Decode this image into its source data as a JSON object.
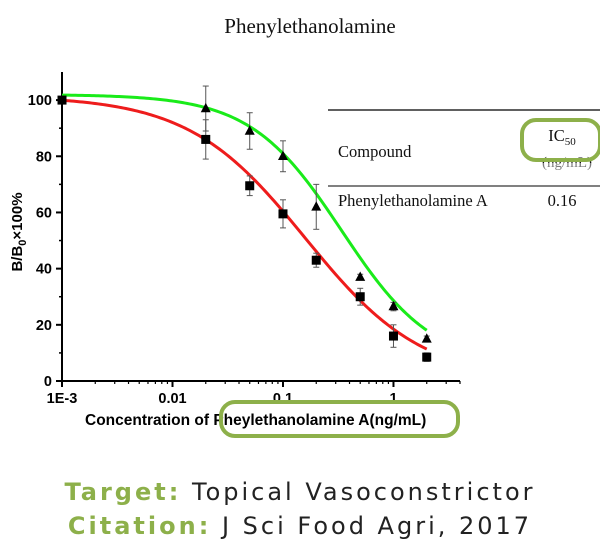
{
  "chart_data": {
    "type": "scatter",
    "title": "Phenylethanolamine",
    "xlabel_parts": [
      "Concentration of ",
      "Pheylethanolamine A(ng/mL)"
    ],
    "ylabel_main": "B/B",
    "ylabel_sub": "0",
    "ylabel_suffix": "×100%",
    "xscale": "log",
    "xlim": [
      0.001,
      4
    ],
    "ylim": [
      0,
      110
    ],
    "x_ticks": [
      {
        "value": 0.001,
        "label": "1E-3"
      },
      {
        "value": 0.01,
        "label": "0.01"
      },
      {
        "value": 0.1,
        "label": "0.1"
      },
      {
        "value": 1,
        "label": "1"
      }
    ],
    "y_ticks": [
      {
        "value": 0,
        "label": "0"
      },
      {
        "value": 20,
        "label": "20"
      },
      {
        "value": 40,
        "label": "40"
      },
      {
        "value": 60,
        "label": "60"
      },
      {
        "value": 80,
        "label": "80"
      },
      {
        "value": 100,
        "label": "100"
      }
    ],
    "series": [
      {
        "marker": "square",
        "color": "#000000",
        "curve_color": "#ee1c1c",
        "x": [
          0.001,
          0.02,
          0.05,
          0.1,
          0.2,
          0.5,
          1,
          2
        ],
        "y": [
          100,
          86,
          69.5,
          59.5,
          43,
          30,
          16,
          8.5
        ],
        "err": [
          0,
          7,
          3.5,
          5,
          2.5,
          3,
          4,
          1.5
        ],
        "fit": {
          "top": 101.5,
          "bottom": 0,
          "ic50": 0.16,
          "hill": 0.82
        }
      },
      {
        "marker": "triangle",
        "color": "#000000",
        "curve_color": "#1aeb1a",
        "x": [
          0.02,
          0.05,
          0.1,
          0.2,
          0.5,
          1,
          2
        ],
        "y": [
          97,
          89,
          80,
          62,
          37,
          26.5,
          15
        ],
        "err": [
          8,
          6.5,
          5.5,
          8,
          1,
          1.5,
          1
        ],
        "fit": {
          "top": 102,
          "bottom": 5,
          "ic50": 0.34,
          "hill": 1.05
        }
      }
    ],
    "grid": false,
    "legend": "none"
  },
  "table": {
    "col1_header": "Compound",
    "col2_header_main": "IC",
    "col2_header_sub": "50",
    "col2_header_unit": "(ng/mL)",
    "row_compound": "Phenylethanolamine A",
    "row_value": "0.16"
  },
  "highlight_color": "#8db04a",
  "caption": {
    "target_label": "Target:",
    "target_value": "Topical Vasoconstrictor",
    "citation_label": "Citation:",
    "citation_value": "J Sci Food Agri, 2017"
  }
}
